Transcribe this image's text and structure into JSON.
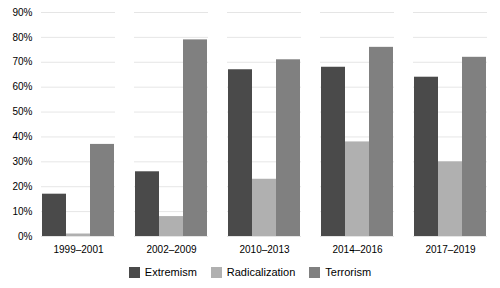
{
  "chart_data": {
    "type": "bar",
    "categories": [
      "1999–2001",
      "2002–2009",
      "2010–2013",
      "2014–2016",
      "2017–2019"
    ],
    "series": [
      {
        "name": "Extremism",
        "color": "#4a4a4a",
        "values": [
          0.17,
          0.26,
          0.67,
          0.68,
          0.64
        ]
      },
      {
        "name": "Radicalization",
        "color": "#b0b0b0",
        "values": [
          0.01,
          0.08,
          0.23,
          0.38,
          0.3
        ]
      },
      {
        "name": "Terrorism",
        "color": "#808080",
        "values": [
          0.37,
          0.79,
          0.71,
          0.76,
          0.72
        ]
      }
    ],
    "ylim": [
      0,
      0.9
    ],
    "yticks": [
      {
        "value": 0.0,
        "label": "0%"
      },
      {
        "value": 0.1,
        "label": "10%"
      },
      {
        "value": 0.2,
        "label": "20%"
      },
      {
        "value": 0.3,
        "label": "30%"
      },
      {
        "value": 0.4,
        "label": "40%"
      },
      {
        "value": 0.5,
        "label": "50%"
      },
      {
        "value": 0.6,
        "label": "60%"
      },
      {
        "value": 0.7,
        "label": "70%"
      },
      {
        "value": 0.8,
        "label": "80%"
      },
      {
        "value": 0.9,
        "label": "90%"
      }
    ],
    "grid": true,
    "legend": "bottom"
  }
}
